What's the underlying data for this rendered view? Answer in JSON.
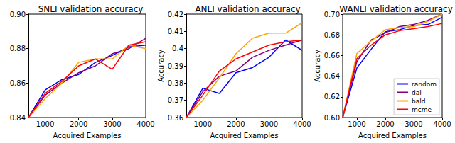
{
  "chart_data": [
    {
      "type": "line",
      "title": "SNLI validation accuracy",
      "xlabel": "Acquired Examples",
      "x": [
        500,
        1000,
        1500,
        2000,
        2500,
        3000,
        3500,
        4000
      ],
      "xlim": [
        500,
        4000
      ],
      "xticks": [
        1000,
        2000,
        3000,
        4000
      ],
      "ylim": [
        0.84,
        0.9
      ],
      "yticks": [
        0.84,
        0.86,
        0.88,
        {
          "value": 0.9,
          "label": "0.90"
        }
      ],
      "grid": false,
      "series": [
        {
          "name": "random",
          "color": "#0000ff",
          "values": [
            0.84,
            0.856,
            0.862,
            0.865,
            0.872,
            0.876,
            0.881,
            0.882
          ]
        },
        {
          "name": "dal",
          "color": "#800080",
          "values": [
            0.84,
            0.853,
            0.86,
            0.866,
            0.87,
            0.877,
            0.88,
            0.886
          ]
        },
        {
          "name": "bald",
          "color": "#ffa500",
          "values": [
            0.84,
            0.851,
            0.86,
            0.872,
            0.874,
            0.874,
            0.882,
            0.88
          ]
        },
        {
          "name": "mcme",
          "color": "#ff0000",
          "values": [
            0.84,
            0.854,
            0.861,
            0.87,
            0.874,
            0.868,
            0.882,
            0.884
          ]
        }
      ]
    },
    {
      "type": "line",
      "title": "ANLI validation accuracy",
      "xlabel": "Acquired Examples",
      "ylabel": "Accuracy",
      "x": [
        500,
        1000,
        1500,
        2000,
        2500,
        3000,
        3500,
        4000
      ],
      "xlim": [
        500,
        4000
      ],
      "xticks": [
        1000,
        2000,
        3000,
        4000
      ],
      "ylim": [
        0.36,
        0.42
      ],
      "yticks": [
        0.36,
        0.37,
        0.38,
        0.39,
        0.4,
        0.41,
        0.42
      ],
      "grid": false,
      "series": [
        {
          "name": "random",
          "color": "#0000ff",
          "values": [
            0.36,
            0.377,
            0.374,
            0.386,
            0.389,
            0.395,
            0.405,
            0.399
          ]
        },
        {
          "name": "dal",
          "color": "#800080",
          "values": [
            0.36,
            0.375,
            0.384,
            0.387,
            0.395,
            0.399,
            0.402,
            0.405
          ]
        },
        {
          "name": "bald",
          "color": "#ffa500",
          "values": [
            0.36,
            0.37,
            0.383,
            0.397,
            0.406,
            0.409,
            0.409,
            0.415
          ]
        },
        {
          "name": "mcme",
          "color": "#ff0000",
          "values": [
            0.36,
            0.373,
            0.387,
            0.394,
            0.398,
            0.402,
            0.404,
            0.405
          ]
        }
      ]
    },
    {
      "type": "line",
      "title": "WANLI validation accuracy",
      "xlabel": "Acquired Examples",
      "ylabel": "Accuracy",
      "x": [
        500,
        1000,
        1500,
        2000,
        2500,
        3000,
        3500,
        4000
      ],
      "xlim": [
        500,
        4000
      ],
      "xticks": [
        1000,
        2000,
        3000,
        4000
      ],
      "ylim": [
        0.6,
        0.7
      ],
      "yticks": [
        {
          "value": 0.6,
          "label": "0.60"
        },
        0.62,
        0.64,
        0.66,
        0.68,
        {
          "value": 0.7,
          "label": "0.70"
        }
      ],
      "grid": false,
      "legend": "lower right",
      "series": [
        {
          "name": "random",
          "color": "#0000ff",
          "values": [
            0.6,
            0.648,
            0.666,
            0.683,
            0.685,
            0.689,
            0.69,
            0.697
          ]
        },
        {
          "name": "dal",
          "color": "#800080",
          "values": [
            0.6,
            0.654,
            0.675,
            0.682,
            0.688,
            0.69,
            0.694,
            0.7
          ]
        },
        {
          "name": "bald",
          "color": "#ffa500",
          "values": [
            0.6,
            0.662,
            0.674,
            0.685,
            0.687,
            0.688,
            0.693,
            0.7
          ]
        },
        {
          "name": "mcme",
          "color": "#ff0000",
          "values": [
            0.6,
            0.657,
            0.67,
            0.68,
            0.684,
            0.686,
            0.688,
            0.691
          ]
        }
      ]
    }
  ]
}
